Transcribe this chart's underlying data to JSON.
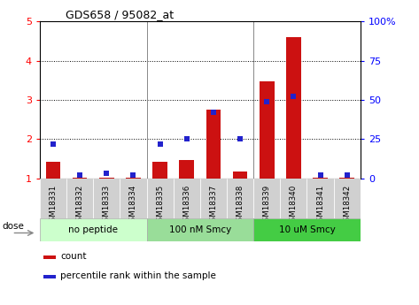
{
  "title": "GDS658 / 95082_at",
  "categories": [
    "GSM18331",
    "GSM18332",
    "GSM18333",
    "GSM18334",
    "GSM18335",
    "GSM18336",
    "GSM18337",
    "GSM18338",
    "GSM18339",
    "GSM18340",
    "GSM18341",
    "GSM18342"
  ],
  "count_values": [
    1.42,
    1.02,
    1.02,
    1.02,
    1.42,
    1.48,
    2.75,
    1.18,
    3.47,
    4.6,
    1.02,
    1.02
  ],
  "percentile_values": [
    22,
    2,
    3,
    2,
    22,
    25,
    42,
    25,
    49,
    52,
    2,
    2
  ],
  "groups": [
    {
      "label": "no peptide",
      "start": 0,
      "end": 3,
      "color": "#ccffcc"
    },
    {
      "label": "100 nM Smcy",
      "start": 4,
      "end": 7,
      "color": "#99dd99"
    },
    {
      "label": "10 uM Smcy",
      "start": 8,
      "end": 11,
      "color": "#44cc44"
    }
  ],
  "dose_label": "dose",
  "bar_color": "#cc1111",
  "dot_color": "#2222cc",
  "ylim_left": [
    1,
    5
  ],
  "ylim_right": [
    0,
    100
  ],
  "yticks_left": [
    1,
    2,
    3,
    4,
    5
  ],
  "ytick_labels_left": [
    "1",
    "2",
    "3",
    "4",
    "5"
  ],
  "yticks_right": [
    0,
    25,
    50,
    75,
    100
  ],
  "ytick_labels_right": [
    "0",
    "25",
    "50",
    "75",
    "100%"
  ],
  "legend_count": "count",
  "legend_percentile": "percentile rank within the sample",
  "bar_width": 0.5,
  "plot_bg": "#ffffff",
  "background_color": "#ffffff",
  "tick_label_bg": "#d0d0d0"
}
